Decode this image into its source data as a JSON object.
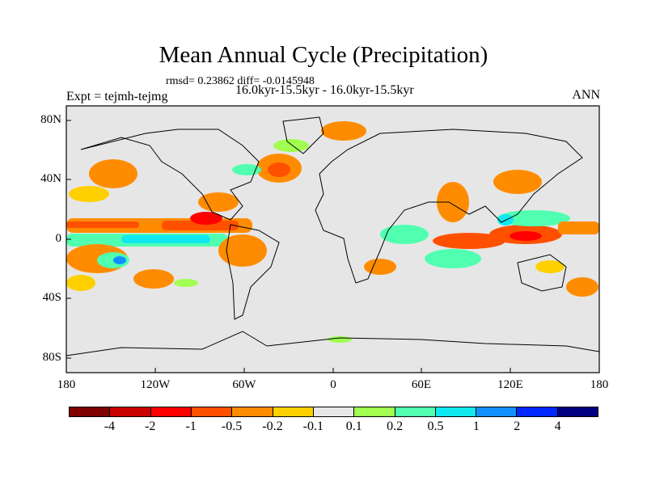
{
  "title": "Mean Annual Cycle (Precipitation)",
  "stats": "rmsd= 0.23862 diff= -0.0145948",
  "expt": "Expt = tejmh-tejmg",
  "period": "16.0kyr-15.5kyr - 16.0kyr-15.5kyr",
  "season": "ANN",
  "lat_labels": [
    "80N",
    "40N",
    "0",
    "40S",
    "80S"
  ],
  "lon_labels": [
    "180",
    "120W",
    "60W",
    "0",
    "60E",
    "120E",
    "180"
  ],
  "colorbar": {
    "colors": [
      "#7f0000",
      "#c80000",
      "#ff0000",
      "#ff5000",
      "#ff8c00",
      "#ffd000",
      "#e6e6e6",
      "#a0ff50",
      "#50ffb0",
      "#10e8f0",
      "#1090ff",
      "#0028ff",
      "#000080"
    ],
    "labels": [
      "-4",
      "-2",
      "-1",
      "-0.5",
      "-0.2",
      "-0.1",
      "0.1",
      "0.2",
      "0.5",
      "1",
      "2",
      "4"
    ]
  }
}
